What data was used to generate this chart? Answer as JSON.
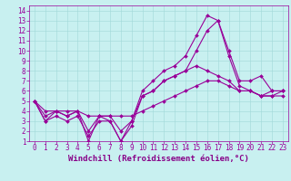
{
  "bg_color": "#c8f0f0",
  "line_color": "#990099",
  "grid_color": "#a0d8d8",
  "xlabel": "Windchill (Refroidissement éolien,°C)",
  "xlabel_color": "#880088",
  "xlim": [
    -0.5,
    23.5
  ],
  "ylim": [
    1,
    14.5
  ],
  "xticks": [
    0,
    1,
    2,
    3,
    4,
    5,
    6,
    7,
    8,
    9,
    10,
    11,
    12,
    13,
    14,
    15,
    16,
    17,
    18,
    19,
    20,
    21,
    22,
    23
  ],
  "yticks": [
    1,
    2,
    3,
    4,
    5,
    6,
    7,
    8,
    9,
    10,
    11,
    12,
    13,
    14
  ],
  "line1_x": [
    0,
    1,
    2,
    3,
    4,
    5,
    6,
    7,
    8,
    9,
    10,
    11,
    12,
    13,
    14,
    15,
    16,
    17,
    18,
    19,
    20,
    21,
    22,
    23
  ],
  "line1_y": [
    5,
    3,
    4,
    3.5,
    4,
    1,
    3.5,
    3,
    1,
    3,
    5.5,
    6,
    7,
    7.5,
    8,
    8.5,
    8,
    7.5,
    7,
    6,
    6,
    5.5,
    6,
    6
  ],
  "line2_x": [
    0,
    1,
    2,
    3,
    4,
    5,
    6,
    7,
    8,
    9,
    10,
    11,
    12,
    13,
    14,
    15,
    16,
    17,
    18,
    19,
    20,
    21,
    22,
    23
  ],
  "line2_y": [
    5,
    3.5,
    4,
    3.5,
    4,
    2,
    3.5,
    3.5,
    2,
    3,
    6,
    7,
    8,
    8.5,
    9.5,
    11.5,
    13.5,
    13,
    10,
    7,
    7,
    7.5,
    6,
    6
  ],
  "line3_x": [
    0,
    1,
    2,
    3,
    4,
    5,
    6,
    7,
    8,
    9,
    10,
    11,
    12,
    13,
    14,
    15,
    16,
    17,
    18,
    19,
    20,
    21,
    22,
    23
  ],
  "line3_y": [
    5,
    3,
    3.5,
    3,
    3.5,
    1.5,
    3,
    3,
    1,
    2.5,
    5.5,
    6,
    7,
    7.5,
    8,
    10,
    12,
    13,
    9.5,
    6.5,
    6,
    5.5,
    5.5,
    5.5
  ],
  "line4_x": [
    0,
    1,
    2,
    3,
    4,
    5,
    6,
    7,
    8,
    9,
    10,
    11,
    12,
    13,
    14,
    15,
    16,
    17,
    18,
    19,
    20,
    21,
    22,
    23
  ],
  "line4_y": [
    5,
    4,
    4,
    4,
    4,
    3.5,
    3.5,
    3.5,
    3.5,
    3.5,
    4,
    4.5,
    5,
    5.5,
    6,
    6.5,
    7,
    7,
    6.5,
    6,
    6,
    5.5,
    5.5,
    6
  ],
  "tick_fontsize": 5.5,
  "xlabel_fontsize": 6.5,
  "markersize": 2,
  "linewidth": 0.8
}
